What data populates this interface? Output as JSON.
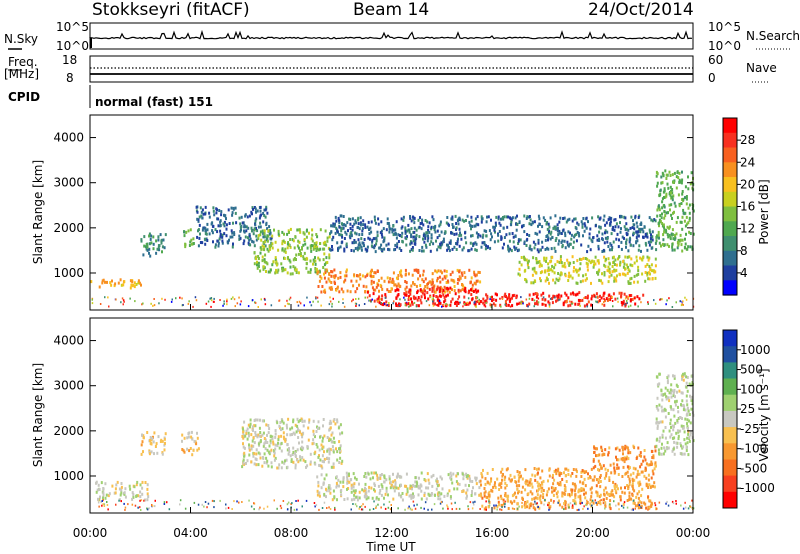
{
  "header": {
    "station": "Stokkseyri (fitACF)",
    "beam": "Beam 14",
    "date": "24/Oct/2014"
  },
  "side_labels": {
    "nsky": "N.Sky",
    "freq_line1": "Freq.",
    "freq_line2": "[MHz]",
    "cpid": "CPID",
    "nsearch": "N.Search",
    "nave": "Nave"
  },
  "strip_ticks": {
    "nsky_left": [
      "10^5",
      "10^0"
    ],
    "nsky_right": [
      "10^5",
      "10^0"
    ],
    "freq_left": [
      "18",
      "8"
    ],
    "nave_right": [
      "60",
      "0"
    ]
  },
  "cpid_text": "normal (fast) 151",
  "axes": {
    "xlabel": "Time UT",
    "x_ticks": [
      "00:00",
      "04:00",
      "08:00",
      "12:00",
      "16:00",
      "20:00",
      "00:00"
    ],
    "ylabel": "Slant Range [km]",
    "y_ticks": [
      "1000",
      "2000",
      "3000",
      "4000"
    ]
  },
  "power_colorbar": {
    "label": "Power [dB]",
    "ticks": [
      "28",
      "24",
      "20",
      "16",
      "12",
      "8",
      "4"
    ],
    "colors": [
      "#0000ff",
      "#1f3f9f",
      "#2f6f8f",
      "#3f8f6f",
      "#4fa84f",
      "#7fbf3f",
      "#c8d020",
      "#f8c020",
      "#f89020",
      "#f86020",
      "#f83020",
      "#ff0000"
    ]
  },
  "velocity_colorbar": {
    "label": "Velocity [m s⁻¹]",
    "ticks": [
      "1000",
      "500",
      "100",
      "25",
      "-25",
      "-100",
      "-500",
      "-1000"
    ],
    "colors": [
      "#1030c0",
      "#2050a0",
      "#2f8f7f",
      "#5fb050",
      "#9fd070",
      "#c8c8c0",
      "#f8c050",
      "#f89830",
      "#f87020",
      "#f84020",
      "#ff0000"
    ]
  },
  "chart_data": [
    {
      "type": "heatmap",
      "title": "",
      "panel": "Power",
      "xlabel": "Time UT",
      "ylabel": "Slant Range [km]",
      "x_range_hours": [
        0,
        24
      ],
      "ylim": [
        180,
        4500
      ],
      "color_unit": "dB",
      "color_range": [
        0,
        30
      ],
      "regions": [
        {
          "time_h": [
            0.0,
            2.0
          ],
          "range_km": [
            700,
            900
          ],
          "power_db": 20
        },
        {
          "time_h": [
            2.0,
            3.0
          ],
          "range_km": [
            1400,
            1900
          ],
          "power_db": 8
        },
        {
          "time_h": [
            3.6,
            4.1
          ],
          "range_km": [
            1600,
            2000
          ],
          "power_db": 12
        },
        {
          "time_h": [
            4.2,
            7.2
          ],
          "range_km": [
            1600,
            2500
          ],
          "power_db": 6
        },
        {
          "time_h": [
            6.5,
            9.5
          ],
          "range_km": [
            1000,
            2000
          ],
          "power_db": 14
        },
        {
          "time_h": [
            9.0,
            15.5
          ],
          "range_km": [
            600,
            1100
          ],
          "power_db": 22
        },
        {
          "time_h": [
            11.0,
            15.5
          ],
          "range_km": [
            300,
            700
          ],
          "power_db": 28
        },
        {
          "time_h": [
            15.5,
            22.0
          ],
          "range_km": [
            300,
            600
          ],
          "power_db": 27
        },
        {
          "time_h": [
            17.0,
            22.5
          ],
          "range_km": [
            800,
            1400
          ],
          "power_db": 16
        },
        {
          "time_h": [
            9.5,
            22.5
          ],
          "range_km": [
            1500,
            2300
          ],
          "power_db": 6
        },
        {
          "time_h": [
            22.5,
            24.0
          ],
          "range_km": [
            1500,
            3300
          ],
          "power_db": 12
        }
      ]
    },
    {
      "type": "heatmap",
      "title": "",
      "panel": "Velocity",
      "xlabel": "Time UT",
      "ylabel": "Slant Range [km]",
      "x_range_hours": [
        0,
        24
      ],
      "ylim": [
        180,
        4500
      ],
      "color_unit": "m s^-1",
      "color_range": [
        -1000,
        1000
      ],
      "regions": [
        {
          "time_h": [
            0.2,
            2.3
          ],
          "range_km": [
            500,
            900
          ],
          "velocity_ms": 10
        },
        {
          "time_h": [
            2.0,
            3.0
          ],
          "range_km": [
            1500,
            2000
          ],
          "velocity_ms": -120
        },
        {
          "time_h": [
            3.6,
            4.3
          ],
          "range_km": [
            1500,
            2000
          ],
          "velocity_ms": -120
        },
        {
          "time_h": [
            6.0,
            10.0
          ],
          "range_km": [
            1200,
            2300
          ],
          "velocity_ms": 10
        },
        {
          "time_h": [
            9.0,
            15.5
          ],
          "range_km": [
            500,
            1100
          ],
          "velocity_ms": 5
        },
        {
          "time_h": [
            15.5,
            22.5
          ],
          "range_km": [
            300,
            1200
          ],
          "velocity_ms": -300
        },
        {
          "time_h": [
            20.0,
            22.5
          ],
          "range_km": [
            1200,
            1700
          ],
          "velocity_ms": -400
        },
        {
          "time_h": [
            22.5,
            24.0
          ],
          "range_km": [
            1500,
            3300
          ],
          "velocity_ms": 80
        }
      ]
    }
  ]
}
